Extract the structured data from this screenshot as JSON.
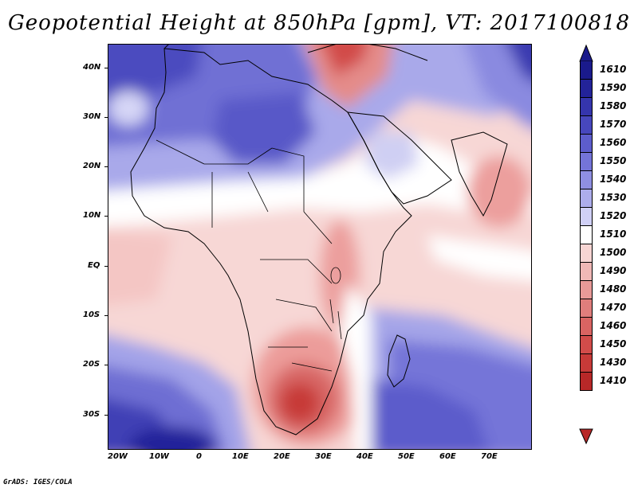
{
  "title": "Geopotential Height at 850hPa [gpm], VT: 2017100818",
  "credit": "GrADS: IGES/COLA",
  "lat_labels": [
    "40N",
    "30N",
    "20N",
    "10N",
    "EQ",
    "10S",
    "20S",
    "30S"
  ],
  "lon_labels": [
    "20W",
    "10W",
    "0",
    "10E",
    "20E",
    "30E",
    "40E",
    "50E",
    "60E",
    "70E"
  ],
  "colorbar": {
    "levels": [
      {
        "label": "1610",
        "color": "#1a1a8c"
      },
      {
        "label": "1590",
        "color": "#232399"
      },
      {
        "label": "1580",
        "color": "#3535ad"
      },
      {
        "label": "1570",
        "color": "#4747bd"
      },
      {
        "label": "1560",
        "color": "#5d5dcc"
      },
      {
        "label": "1550",
        "color": "#7474d8"
      },
      {
        "label": "1540",
        "color": "#8f8fe2"
      },
      {
        "label": "1530",
        "color": "#adadec"
      },
      {
        "label": "1520",
        "color": "#d0d0f6"
      },
      {
        "label": "1510",
        "color": "#ffffff"
      },
      {
        "label": "1500",
        "color": "#f7d5d3"
      },
      {
        "label": "1490",
        "color": "#f0b8b6"
      },
      {
        "label": "1480",
        "color": "#e89a98"
      },
      {
        "label": "1470",
        "color": "#e07e7c"
      },
      {
        "label": "1460",
        "color": "#d96462"
      },
      {
        "label": "1450",
        "color": "#d24c4a"
      },
      {
        "label": "1430",
        "color": "#c73a38"
      },
      {
        "label": "1410",
        "color": "#b82828"
      }
    ],
    "top_arrow_color": "#1a1a8c",
    "bottom_arrow_color": "#b82828"
  }
}
